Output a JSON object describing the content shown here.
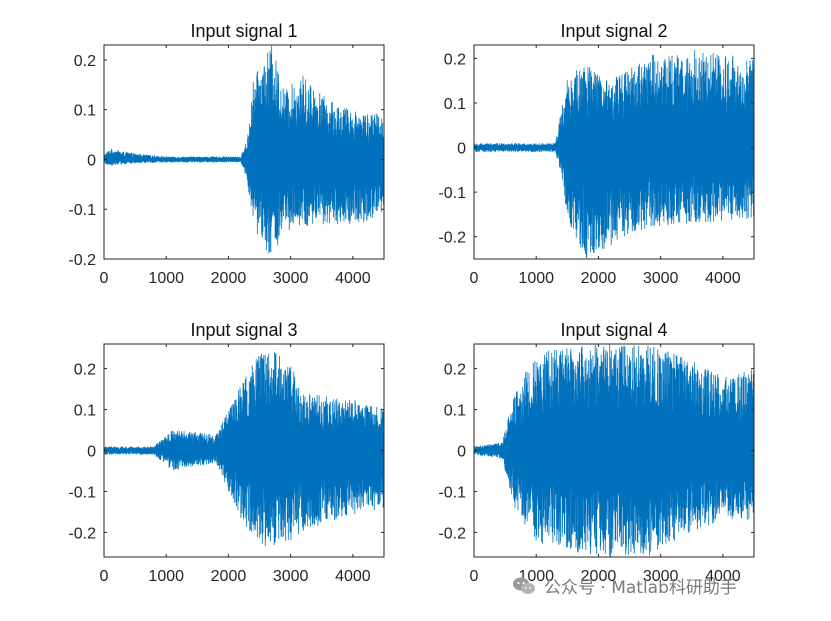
{
  "chart_data": [
    {
      "type": "line",
      "title": "Input signal 1",
      "xlim": [
        0,
        4500
      ],
      "ylim": [
        -0.2,
        0.23
      ],
      "xticks": [
        0,
        1000,
        2000,
        3000,
        4000
      ],
      "yticks": [
        0.2,
        0.1,
        0,
        -0.1,
        -0.2
      ],
      "yticklabels": [
        "0.2",
        "0.1",
        "0",
        "-0.1",
        "-0.2"
      ],
      "grid": false,
      "color": "#0072BD",
      "envelope": [
        {
          "x": 0,
          "upper": 0.01,
          "lower": -0.01
        },
        {
          "x": 100,
          "upper": 0.022,
          "lower": -0.012
        },
        {
          "x": 500,
          "upper": 0.012,
          "lower": -0.008
        },
        {
          "x": 1000,
          "upper": 0.006,
          "lower": -0.006
        },
        {
          "x": 2200,
          "upper": 0.006,
          "lower": -0.006
        },
        {
          "x": 2300,
          "upper": 0.04,
          "lower": -0.04
        },
        {
          "x": 2400,
          "upper": 0.16,
          "lower": -0.14
        },
        {
          "x": 2550,
          "upper": 0.2,
          "lower": -0.17
        },
        {
          "x": 2700,
          "upper": 0.23,
          "lower": -0.2
        },
        {
          "x": 2900,
          "upper": 0.14,
          "lower": -0.15
        },
        {
          "x": 3200,
          "upper": 0.17,
          "lower": -0.14
        },
        {
          "x": 3600,
          "upper": 0.12,
          "lower": -0.13
        },
        {
          "x": 4000,
          "upper": 0.1,
          "lower": -0.13
        },
        {
          "x": 4500,
          "upper": 0.09,
          "lower": -0.12
        }
      ]
    },
    {
      "type": "line",
      "title": "Input signal 2",
      "xlim": [
        0,
        4500
      ],
      "ylim": [
        -0.25,
        0.23
      ],
      "xticks": [
        0,
        1000,
        2000,
        3000,
        4000
      ],
      "yticks": [
        0.2,
        0.1,
        0,
        -0.1,
        -0.2
      ],
      "yticklabels": [
        "0.2",
        "0.1",
        "0",
        "-0.1",
        "-0.2"
      ],
      "grid": false,
      "color": "#0072BD",
      "envelope": [
        {
          "x": 0,
          "upper": 0.01,
          "lower": -0.01
        },
        {
          "x": 1300,
          "upper": 0.01,
          "lower": -0.01
        },
        {
          "x": 1400,
          "upper": 0.08,
          "lower": -0.06
        },
        {
          "x": 1500,
          "upper": 0.17,
          "lower": -0.16
        },
        {
          "x": 1800,
          "upper": 0.19,
          "lower": -0.25
        },
        {
          "x": 2200,
          "upper": 0.15,
          "lower": -0.22
        },
        {
          "x": 2800,
          "upper": 0.21,
          "lower": -0.18
        },
        {
          "x": 3500,
          "upper": 0.22,
          "lower": -0.17
        },
        {
          "x": 4500,
          "upper": 0.2,
          "lower": -0.16
        }
      ]
    },
    {
      "type": "line",
      "title": "Input signal 3",
      "xlim": [
        0,
        4500
      ],
      "ylim": [
        -0.26,
        0.26
      ],
      "xticks": [
        0,
        1000,
        2000,
        3000,
        4000
      ],
      "yticks": [
        0.2,
        0.1,
        0,
        -0.1,
        -0.2
      ],
      "yticklabels": [
        "0.2",
        "0.1",
        "0",
        "-0.1",
        "-0.2"
      ],
      "grid": false,
      "color": "#0072BD",
      "envelope": [
        {
          "x": 0,
          "upper": 0.01,
          "lower": -0.01
        },
        {
          "x": 800,
          "upper": 0.01,
          "lower": -0.01
        },
        {
          "x": 1100,
          "upper": 0.05,
          "lower": -0.05
        },
        {
          "x": 1800,
          "upper": 0.04,
          "lower": -0.03
        },
        {
          "x": 2000,
          "upper": 0.1,
          "lower": -0.1
        },
        {
          "x": 2300,
          "upper": 0.19,
          "lower": -0.2
        },
        {
          "x": 2600,
          "upper": 0.26,
          "lower": -0.24
        },
        {
          "x": 3000,
          "upper": 0.21,
          "lower": -0.22
        },
        {
          "x": 3200,
          "upper": 0.14,
          "lower": -0.2
        },
        {
          "x": 3800,
          "upper": 0.13,
          "lower": -0.17
        },
        {
          "x": 4500,
          "upper": 0.11,
          "lower": -0.14
        }
      ]
    },
    {
      "type": "line",
      "title": "Input signal 4",
      "xlim": [
        0,
        4500
      ],
      "ylim": [
        -0.26,
        0.26
      ],
      "xticks": [
        0,
        1000,
        2000,
        3000,
        4000
      ],
      "yticks": [
        0.2,
        0.1,
        0,
        -0.1,
        -0.2
      ],
      "yticklabels": [
        "0.2",
        "0.1",
        "0",
        "-0.1",
        "-0.2"
      ],
      "grid": false,
      "color": "#0072BD",
      "envelope": [
        {
          "x": 0,
          "upper": 0.01,
          "lower": -0.01
        },
        {
          "x": 450,
          "upper": 0.02,
          "lower": -0.02
        },
        {
          "x": 650,
          "upper": 0.14,
          "lower": -0.14
        },
        {
          "x": 1000,
          "upper": 0.24,
          "lower": -0.23
        },
        {
          "x": 2000,
          "upper": 0.26,
          "lower": -0.26
        },
        {
          "x": 2800,
          "upper": 0.26,
          "lower": -0.26
        },
        {
          "x": 3500,
          "upper": 0.22,
          "lower": -0.2
        },
        {
          "x": 4000,
          "upper": 0.18,
          "lower": -0.17
        },
        {
          "x": 4500,
          "upper": 0.2,
          "lower": -0.17
        }
      ]
    }
  ],
  "watermark": {
    "text": "公众号 · Matlab科研助手",
    "icon": "wechat-icon"
  }
}
